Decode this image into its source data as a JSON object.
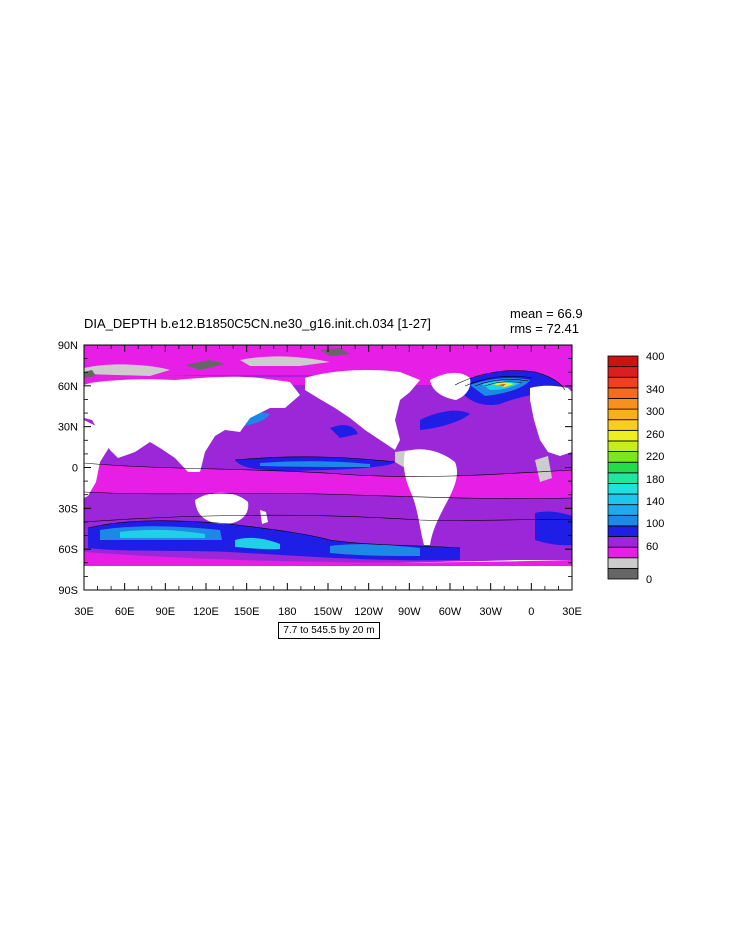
{
  "title": "DIA_DEPTH b.e12.B1850C5CN.ne30_g16.init.ch.034 [1-27]",
  "stats": {
    "mean": "mean = 66.9",
    "rms": "rms = 72.41"
  },
  "info_box": "7.7 to 545.5 by 20 m",
  "map": {
    "lat_labels": [
      "90N",
      "60N",
      "30N",
      "0",
      "30S",
      "60S",
      "90S"
    ],
    "lon_labels": [
      "30E",
      "60E",
      "90E",
      "120E",
      "150E",
      "180",
      "150W",
      "120W",
      "90W",
      "60W",
      "30W",
      "0",
      "30E"
    ],
    "land_color": "#ffffff",
    "colors": {
      "ice": "#666666",
      "shallow": "#cccccc",
      "magenta": "#e61ee6",
      "purple": "#9b27d8",
      "blue": "#1e1ee6",
      "mid_blue": "#1e88e6",
      "cyan": "#20d0e6",
      "contour": "#000000"
    }
  },
  "colorbar": {
    "labels": [
      "400",
      "340",
      "300",
      "260",
      "220",
      "180",
      "140",
      "100",
      "60",
      "0"
    ],
    "colors": [
      "#666666",
      "#cccccc",
      "#e61ee6",
      "#9b27d8",
      "#1e1ee6",
      "#1e88e6",
      "#1eaaf0",
      "#1ec6ee",
      "#20e0e0",
      "#20e6a0",
      "#22dc4a",
      "#7ee61e",
      "#c6ee1e",
      "#eef01e",
      "#f6d01e",
      "#f8ae1e",
      "#f8901e",
      "#f86a1e",
      "#f0401e",
      "#dc1e1e",
      "#c81414"
    ]
  }
}
